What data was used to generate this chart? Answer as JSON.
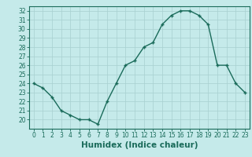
{
  "x": [
    0,
    1,
    2,
    3,
    4,
    5,
    6,
    7,
    8,
    9,
    10,
    11,
    12,
    13,
    14,
    15,
    16,
    17,
    18,
    19,
    20,
    21,
    22,
    23
  ],
  "y": [
    24.0,
    23.5,
    22.5,
    21.0,
    20.5,
    20.0,
    20.0,
    19.5,
    22.0,
    24.0,
    26.0,
    26.5,
    28.0,
    28.5,
    30.5,
    31.5,
    32.0,
    32.0,
    31.5,
    30.5,
    26.0,
    26.0,
    24.0,
    23.0
  ],
  "line_color": "#1a6b5a",
  "marker": "+",
  "bg_color": "#c5eaea",
  "grid_color": "#a8d0d0",
  "xlabel": "Humidex (Indice chaleur)",
  "ylim": [
    19.0,
    32.5
  ],
  "xlim": [
    -0.5,
    23.5
  ],
  "yticks": [
    20,
    21,
    22,
    23,
    24,
    25,
    26,
    27,
    28,
    29,
    30,
    31,
    32
  ],
  "xticks": [
    0,
    1,
    2,
    3,
    4,
    5,
    6,
    7,
    8,
    9,
    10,
    11,
    12,
    13,
    14,
    15,
    16,
    17,
    18,
    19,
    20,
    21,
    22,
    23
  ],
  "tick_label_fontsize": 5.5,
  "xlabel_fontsize": 7.5,
  "linewidth": 1.0,
  "markersize": 3.5,
  "markerwidth": 1.0
}
